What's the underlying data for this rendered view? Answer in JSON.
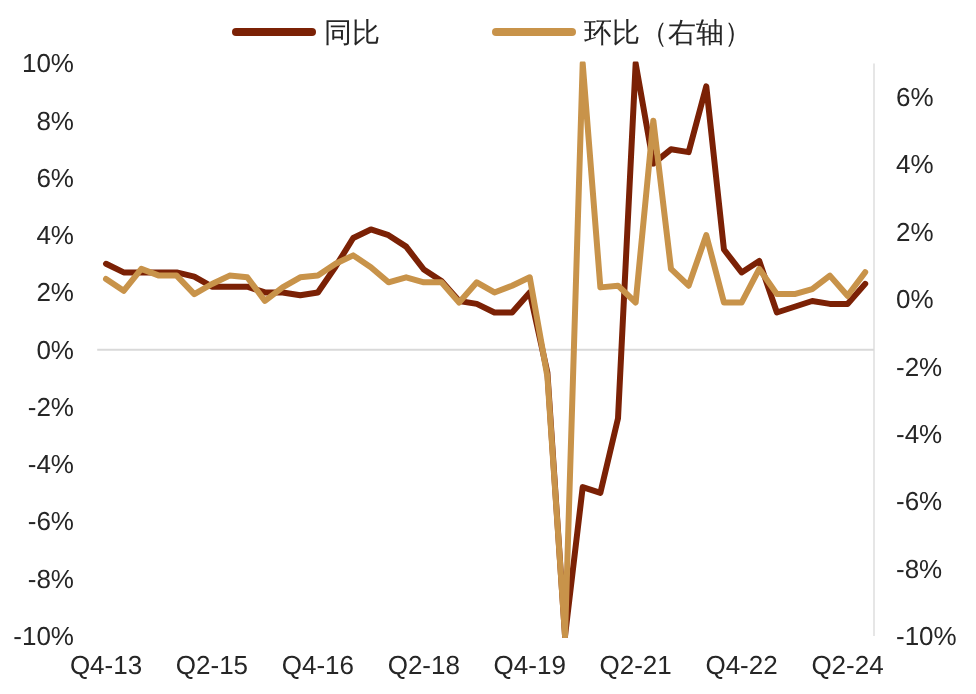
{
  "chart_data": {
    "type": "line",
    "legend": "top",
    "categories": [
      "Q4-13",
      null,
      null,
      null,
      null,
      null,
      "Q2-15",
      null,
      null,
      null,
      null,
      null,
      "Q4-16",
      null,
      null,
      null,
      null,
      null,
      "Q2-18",
      null,
      null,
      null,
      null,
      null,
      "Q4-19",
      null,
      null,
      null,
      null,
      null,
      "Q2-21",
      null,
      null,
      null,
      null,
      null,
      "Q4-22",
      null,
      null,
      null,
      null,
      null,
      "Q2-24",
      null
    ],
    "series": [
      {
        "name": "同比",
        "color": "#7b2105",
        "axis": "y",
        "values": [
          3.0,
          2.7,
          2.7,
          2.7,
          2.7,
          2.55,
          2.2,
          2.2,
          2.2,
          2.0,
          2.0,
          1.9,
          2.0,
          2.9,
          3.9,
          4.2,
          4.0,
          3.6,
          2.8,
          2.4,
          1.7,
          1.6,
          1.3,
          1.3,
          2.0,
          -0.8,
          -10,
          -4.8,
          -5.0,
          -2.4,
          10,
          6.5,
          7.0,
          6.9,
          9.2,
          3.5,
          2.7,
          3.1,
          1.3,
          1.5,
          1.7,
          1.6,
          1.6,
          2.3
        ]
      },
      {
        "name": "环比（右轴）",
        "color": "#c8934a",
        "axis": "y2",
        "values": [
          0.6,
          0.25,
          0.9,
          0.7,
          0.7,
          0.15,
          0.45,
          0.7,
          0.65,
          -0.05,
          0.35,
          0.65,
          0.7,
          1.05,
          1.3,
          0.95,
          0.5,
          0.65,
          0.5,
          0.5,
          -0.1,
          0.5,
          0.2,
          0.4,
          0.65,
          -2.3,
          -10,
          7,
          0.35,
          0.4,
          -0.1,
          5.3,
          0.9,
          0.4,
          1.9,
          -0.1,
          -0.1,
          0.9,
          0.15,
          0.15,
          0.3,
          0.7,
          0.1,
          0.8
        ]
      }
    ],
    "ylim": [
      -10,
      10
    ],
    "yticks": [
      {
        "value": -10,
        "label": "-10%"
      },
      {
        "value": -8,
        "label": "-8%"
      },
      {
        "value": -6,
        "label": "-6%"
      },
      {
        "value": -4,
        "label": "-4%"
      },
      {
        "value": -2,
        "label": "-2%"
      },
      {
        "value": 0,
        "label": "0%"
      },
      {
        "value": 2,
        "label": "2%"
      },
      {
        "value": 4,
        "label": "4%"
      },
      {
        "value": 6,
        "label": "6%"
      },
      {
        "value": 8,
        "label": "8%"
      },
      {
        "value": 10,
        "label": "10%"
      }
    ],
    "y2lim": [
      -10,
      7
    ],
    "y2ticks": [
      {
        "value": -10,
        "label": "-10%"
      },
      {
        "value": -8,
        "label": "-8%"
      },
      {
        "value": -6,
        "label": "-6%"
      },
      {
        "value": -4,
        "label": "-4%"
      },
      {
        "value": -2,
        "label": "-2%"
      },
      {
        "value": 0,
        "label": "0%"
      },
      {
        "value": 2,
        "label": "2%"
      },
      {
        "value": 4,
        "label": "4%"
      },
      {
        "value": 6,
        "label": "6%"
      }
    ]
  }
}
